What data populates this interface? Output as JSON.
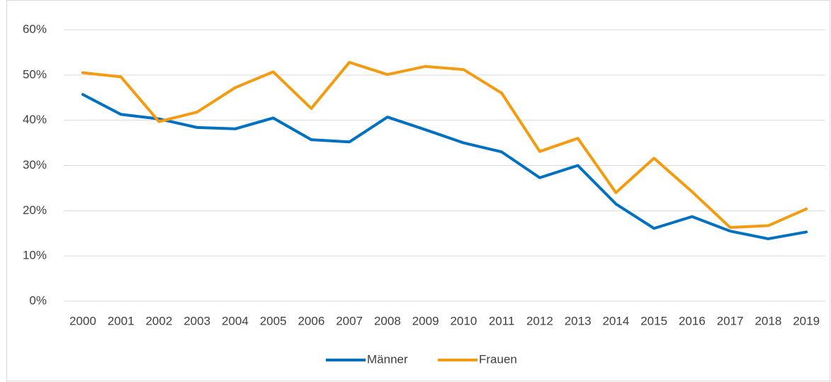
{
  "chart_data": {
    "type": "line",
    "categories": [
      "2000",
      "2001",
      "2002",
      "2003",
      "2004",
      "2005",
      "2006",
      "2007",
      "2008",
      "2009",
      "2010",
      "2011",
      "2012",
      "2013",
      "2014",
      "2015",
      "2016",
      "2017",
      "2018",
      "2019"
    ],
    "series": [
      {
        "name": "Männer",
        "color": "#0070c0",
        "values": [
          45.7,
          41.3,
          40.3,
          38.4,
          38.1,
          40.5,
          35.7,
          35.2,
          40.7,
          37.9,
          35.0,
          33.0,
          27.3,
          30.0,
          21.5,
          16.1,
          18.7,
          15.5,
          13.8,
          15.3
        ]
      },
      {
        "name": "Frauen",
        "color": "#f39c12",
        "values": [
          50.5,
          49.6,
          39.7,
          41.8,
          47.2,
          50.7,
          42.6,
          52.8,
          50.1,
          51.9,
          51.2,
          46.0,
          33.1,
          36.0,
          24.0,
          31.6,
          24.2,
          16.3,
          16.7,
          20.4
        ]
      }
    ],
    "ylim": [
      0,
      60
    ],
    "yticks": [
      {
        "value": 0,
        "label": "0%"
      },
      {
        "value": 10,
        "label": "10%"
      },
      {
        "value": 20,
        "label": "20%"
      },
      {
        "value": 30,
        "label": "30%"
      },
      {
        "value": 40,
        "label": "40%"
      },
      {
        "value": 50,
        "label": "50%"
      },
      {
        "value": 60,
        "label": "60%"
      }
    ],
    "grid": true,
    "legend": "bottom"
  }
}
